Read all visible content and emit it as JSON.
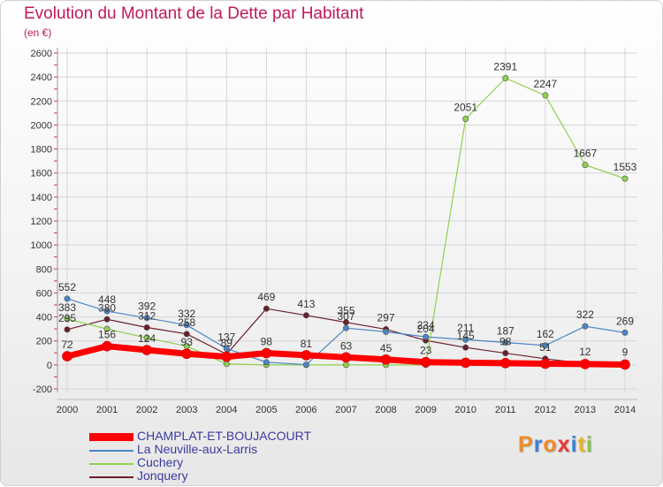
{
  "title": "Evolution du Montant de la Dette par Habitant",
  "unit_label": "(en €)",
  "logo": {
    "letters": [
      "P",
      "r",
      "o",
      "x",
      "i",
      "t",
      "i"
    ],
    "colors": [
      "#f08a24",
      "#3a7fd5",
      "#f08a24",
      "#e53935",
      "#3a7fd5",
      "#e8b32c",
      "#8bc34a"
    ]
  },
  "chart_data": {
    "type": "line",
    "x": [
      "2000",
      "2001",
      "2002",
      "2003",
      "2004",
      "2005",
      "2006",
      "2007",
      "2008",
      "2009",
      "2010",
      "2011",
      "2012",
      "2013",
      "2014"
    ],
    "ylim": [
      -200,
      2600
    ],
    "yticks": [
      "-200",
      "0",
      "200",
      "400",
      "600",
      "800",
      "1000",
      "1200",
      "1400",
      "1600",
      "1800",
      "2000",
      "2200",
      "2400",
      "2600"
    ],
    "grid": true,
    "legend_position": "bottom-left",
    "series": [
      {
        "name": "CHAMPLAT-ET-BOUJACOURT",
        "color": "#ff0000",
        "values": [
          72,
          156,
          124,
          93,
          68,
          98,
          81,
          63,
          45,
          23,
          18,
          15,
          10,
          7,
          3
        ],
        "labels": [
          "72",
          "156",
          "124",
          "93",
          "",
          "98",
          "81",
          "63",
          "45",
          "23",
          "",
          "",
          "",
          "",
          ""
        ]
      },
      {
        "name": "La Neuville-aux-Larris",
        "color": "#4a86c5",
        "values": [
          552,
          448,
          392,
          332,
          137,
          22,
          2,
          307,
          276,
          234,
          211,
          187,
          162,
          322,
          269
        ],
        "labels": [
          "552",
          "448",
          "392",
          "332",
          "137",
          "",
          "",
          "307",
          "",
          "234",
          "211",
          "187",
          "162",
          "322",
          "269"
        ]
      },
      {
        "name": "Cuchery",
        "color": "#8fd14f",
        "values": [
          383,
          300,
          225,
          157,
          8,
          0,
          0,
          0,
          0,
          0,
          2051,
          2391,
          2247,
          1667,
          1553
        ],
        "labels": [
          "383",
          "",
          "",
          "",
          "",
          "",
          "",
          "",
          "",
          "",
          "2051",
          "2391",
          "2247",
          "1667",
          "1553"
        ]
      },
      {
        "name": "Jonquery",
        "color": "#6b1f2a",
        "values": [
          295,
          380,
          312,
          258,
          89,
          469,
          413,
          355,
          297,
          204,
          145,
          98,
          51,
          12,
          9
        ],
        "labels": [
          "295",
          "380",
          "312",
          "258",
          "89",
          "469",
          "413",
          "355",
          "297",
          "204",
          "145",
          "98",
          "51",
          "12",
          "9"
        ]
      }
    ]
  }
}
